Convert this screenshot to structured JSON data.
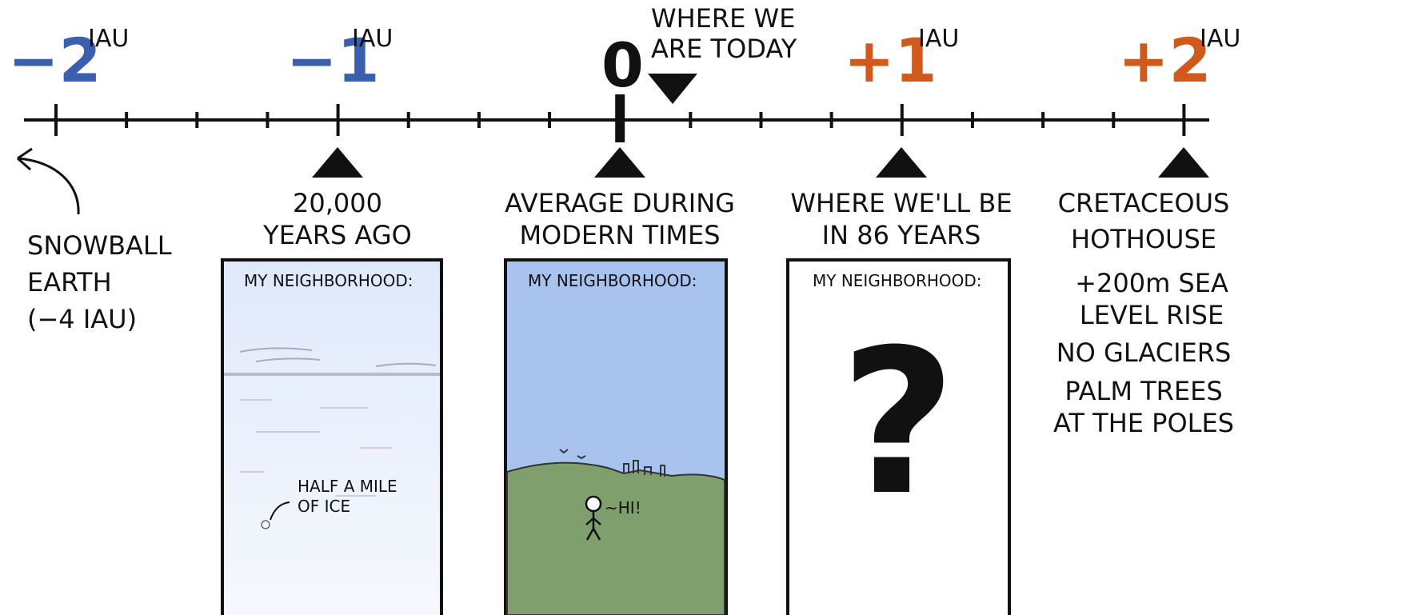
{
  "timeline": {
    "ticks": [
      {
        "label": "−2",
        "unit": "IAU"
      },
      {
        "label": "−1",
        "unit": "IAU"
      },
      {
        "label": "0"
      },
      {
        "label": "+1",
        "unit": "IAU"
      },
      {
        "label": "+2",
        "unit": "IAU"
      }
    ],
    "today": [
      "WHERE WE",
      "ARE TODAY"
    ],
    "snowball": [
      "SNOWBALL",
      "EARTH",
      "(−4 IAU)"
    ],
    "markers": [
      [
        "20,000",
        "YEARS AGO"
      ],
      [
        "AVERAGE DURING",
        "MODERN TIMES"
      ],
      [
        "WHERE WE'LL BE",
        "IN 86 YEARS"
      ],
      [
        "CRETACEOUS",
        "HOTHOUSE"
      ]
    ],
    "cretaceous_notes": [
      "+200m SEA",
      "LEVEL RISE",
      "NO GLACIERS",
      "PALM TREES",
      "AT THE POLES"
    ]
  },
  "panels": [
    {
      "heading": "MY NEIGHBORHOOD:",
      "notes": [
        "HALF A MILE",
        "OF ICE"
      ]
    },
    {
      "heading": "MY NEIGHBORHOOD:",
      "notes": [
        "~HI!"
      ]
    },
    {
      "heading": "MY NEIGHBORHOOD:",
      "notes": [
        "?"
      ]
    }
  ]
}
